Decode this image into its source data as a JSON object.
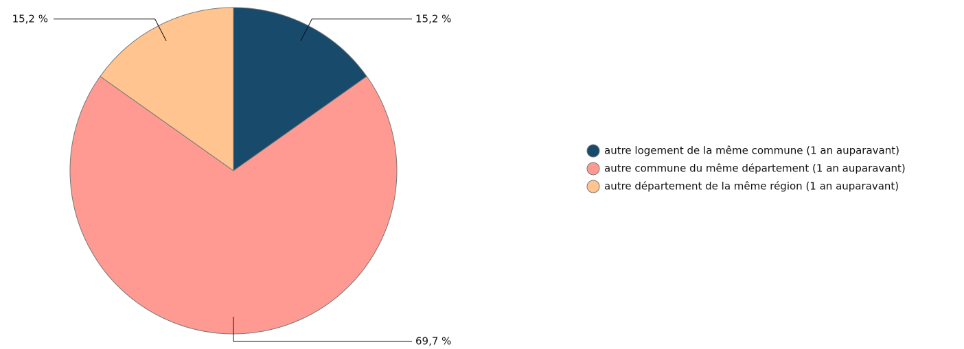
{
  "chart_data": {
    "type": "pie",
    "categories": [
      "autre logement de la même commune (1 an auparavant)",
      "autre commune du même département (1 an auparavant)",
      "autre département de la même région (1 an auparavant)"
    ],
    "values": [
      15.2,
      69.7,
      15.2
    ],
    "value_labels": [
      "15,2 %",
      "69,7 %",
      "15,2 %"
    ],
    "colors": [
      "#174a6b",
      "#fe9a92",
      "#ffc48f"
    ],
    "legend": "right"
  }
}
